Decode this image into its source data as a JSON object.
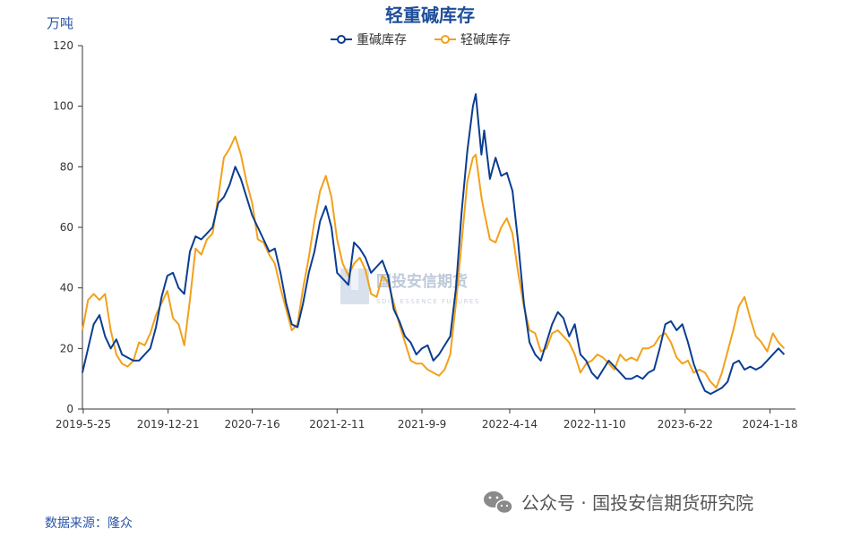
{
  "colors": {
    "heavy": "#0b3d91",
    "light": "#f2a11a",
    "axis": "#333333"
  },
  "chart_data": {
    "type": "line",
    "title": "轻重碱库存",
    "ylabel": "万吨",
    "ylim": [
      0,
      120
    ],
    "yticks": [
      0,
      20,
      40,
      60,
      80,
      100,
      120
    ],
    "xlim": [
      "2019-05-23",
      "2024-03-21"
    ],
    "xticks": [
      "2019-5-25",
      "2019-12-21",
      "2020-7-16",
      "2021-2-11",
      "2021-9-9",
      "2022-4-14",
      "2022-11-10",
      "2023-6-22",
      "2024-1-18"
    ],
    "grid": false,
    "legend_position": "top-center",
    "series": [
      {
        "name": "重碱库存",
        "color": "#0b3d91",
        "points": [
          [
            "2019-05-23",
            12
          ],
          [
            "2019-06-06",
            20
          ],
          [
            "2019-06-20",
            28
          ],
          [
            "2019-07-04",
            31
          ],
          [
            "2019-07-18",
            24
          ],
          [
            "2019-08-01",
            20
          ],
          [
            "2019-08-15",
            23
          ],
          [
            "2019-08-29",
            18
          ],
          [
            "2019-09-12",
            17
          ],
          [
            "2019-09-26",
            16
          ],
          [
            "2019-10-10",
            16
          ],
          [
            "2019-10-24",
            18
          ],
          [
            "2019-11-07",
            20
          ],
          [
            "2019-11-21",
            27
          ],
          [
            "2019-12-05",
            37
          ],
          [
            "2019-12-19",
            44
          ],
          [
            "2020-01-02",
            45
          ],
          [
            "2020-01-16",
            40
          ],
          [
            "2020-01-30",
            38
          ],
          [
            "2020-02-13",
            52
          ],
          [
            "2020-02-27",
            57
          ],
          [
            "2020-03-12",
            56
          ],
          [
            "2020-03-26",
            58
          ],
          [
            "2020-04-09",
            60
          ],
          [
            "2020-04-23",
            68
          ],
          [
            "2020-05-07",
            70
          ],
          [
            "2020-05-21",
            74
          ],
          [
            "2020-06-04",
            80
          ],
          [
            "2020-06-18",
            76
          ],
          [
            "2020-07-02",
            70
          ],
          [
            "2020-07-16",
            64
          ],
          [
            "2020-07-30",
            60
          ],
          [
            "2020-08-13",
            56
          ],
          [
            "2020-08-27",
            52
          ],
          [
            "2020-09-10",
            53
          ],
          [
            "2020-09-24",
            45
          ],
          [
            "2020-10-08",
            35
          ],
          [
            "2020-10-22",
            28
          ],
          [
            "2020-11-05",
            27
          ],
          [
            "2020-11-19",
            35
          ],
          [
            "2020-12-03",
            45
          ],
          [
            "2020-12-17",
            52
          ],
          [
            "2020-12-31",
            62
          ],
          [
            "2021-01-14",
            67
          ],
          [
            "2021-01-28",
            60
          ],
          [
            "2021-02-11",
            45
          ],
          [
            "2021-02-25",
            43
          ],
          [
            "2021-03-11",
            41
          ],
          [
            "2021-03-25",
            55
          ],
          [
            "2021-04-08",
            53
          ],
          [
            "2021-04-22",
            50
          ],
          [
            "2021-05-06",
            45
          ],
          [
            "2021-05-20",
            47
          ],
          [
            "2021-06-03",
            49
          ],
          [
            "2021-06-17",
            44
          ],
          [
            "2021-07-01",
            33
          ],
          [
            "2021-07-15",
            29
          ],
          [
            "2021-07-29",
            24
          ],
          [
            "2021-08-12",
            22
          ],
          [
            "2021-08-26",
            18
          ],
          [
            "2021-09-09",
            20
          ],
          [
            "2021-09-23",
            21
          ],
          [
            "2021-10-07",
            16
          ],
          [
            "2021-10-21",
            18
          ],
          [
            "2021-11-04",
            21
          ],
          [
            "2021-11-18",
            24
          ],
          [
            "2021-12-02",
            40
          ],
          [
            "2021-12-16",
            65
          ],
          [
            "2021-12-30",
            85
          ],
          [
            "2022-01-13",
            100
          ],
          [
            "2022-01-20",
            104
          ],
          [
            "2022-02-03",
            84
          ],
          [
            "2022-02-10",
            92
          ],
          [
            "2022-02-24",
            76
          ],
          [
            "2022-03-10",
            83
          ],
          [
            "2022-03-24",
            77
          ],
          [
            "2022-04-07",
            78
          ],
          [
            "2022-04-21",
            72
          ],
          [
            "2022-05-05",
            55
          ],
          [
            "2022-05-19",
            35
          ],
          [
            "2022-06-02",
            22
          ],
          [
            "2022-06-16",
            18
          ],
          [
            "2022-06-30",
            16
          ],
          [
            "2022-07-14",
            22
          ],
          [
            "2022-07-28",
            28
          ],
          [
            "2022-08-11",
            32
          ],
          [
            "2022-08-25",
            30
          ],
          [
            "2022-09-08",
            24
          ],
          [
            "2022-09-22",
            28
          ],
          [
            "2022-10-06",
            18
          ],
          [
            "2022-10-20",
            16
          ],
          [
            "2022-11-03",
            12
          ],
          [
            "2022-11-17",
            10
          ],
          [
            "2022-12-01",
            13
          ],
          [
            "2022-12-15",
            16
          ],
          [
            "2022-12-29",
            14
          ],
          [
            "2023-01-12",
            12
          ],
          [
            "2023-01-26",
            10
          ],
          [
            "2023-02-09",
            10
          ],
          [
            "2023-02-23",
            11
          ],
          [
            "2023-03-09",
            10
          ],
          [
            "2023-03-23",
            12
          ],
          [
            "2023-04-06",
            13
          ],
          [
            "2023-04-20",
            20
          ],
          [
            "2023-05-04",
            28
          ],
          [
            "2023-05-18",
            29
          ],
          [
            "2023-06-01",
            26
          ],
          [
            "2023-06-15",
            28
          ],
          [
            "2023-06-29",
            22
          ],
          [
            "2023-07-13",
            15
          ],
          [
            "2023-07-27",
            10
          ],
          [
            "2023-08-10",
            6
          ],
          [
            "2023-08-24",
            5
          ],
          [
            "2023-09-07",
            6
          ],
          [
            "2023-09-21",
            7
          ],
          [
            "2023-10-05",
            9
          ],
          [
            "2023-10-19",
            15
          ],
          [
            "2023-11-02",
            16
          ],
          [
            "2023-11-16",
            13
          ],
          [
            "2023-11-30",
            14
          ],
          [
            "2023-12-14",
            13
          ],
          [
            "2023-12-28",
            14
          ],
          [
            "2024-01-11",
            16
          ],
          [
            "2024-01-25",
            18
          ],
          [
            "2024-02-08",
            20
          ],
          [
            "2024-02-22",
            18
          ]
        ]
      },
      {
        "name": "轻碱库存",
        "color": "#f2a11a",
        "points": [
          [
            "2019-05-23",
            26
          ],
          [
            "2019-06-06",
            36
          ],
          [
            "2019-06-20",
            38
          ],
          [
            "2019-07-04",
            36
          ],
          [
            "2019-07-18",
            38
          ],
          [
            "2019-08-01",
            26
          ],
          [
            "2019-08-15",
            18
          ],
          [
            "2019-08-29",
            15
          ],
          [
            "2019-09-12",
            14
          ],
          [
            "2019-09-26",
            16
          ],
          [
            "2019-10-10",
            22
          ],
          [
            "2019-10-24",
            21
          ],
          [
            "2019-11-07",
            25
          ],
          [
            "2019-11-21",
            31
          ],
          [
            "2019-12-05",
            35
          ],
          [
            "2019-12-19",
            39
          ],
          [
            "2020-01-02",
            30
          ],
          [
            "2020-01-16",
            28
          ],
          [
            "2020-01-30",
            21
          ],
          [
            "2020-02-13",
            36
          ],
          [
            "2020-02-27",
            53
          ],
          [
            "2020-03-12",
            51
          ],
          [
            "2020-03-26",
            56
          ],
          [
            "2020-04-09",
            58
          ],
          [
            "2020-04-23",
            70
          ],
          [
            "2020-05-07",
            83
          ],
          [
            "2020-05-21",
            86
          ],
          [
            "2020-06-04",
            90
          ],
          [
            "2020-06-18",
            84
          ],
          [
            "2020-07-02",
            75
          ],
          [
            "2020-07-16",
            68
          ],
          [
            "2020-07-30",
            56
          ],
          [
            "2020-08-13",
            55
          ],
          [
            "2020-08-27",
            51
          ],
          [
            "2020-09-10",
            48
          ],
          [
            "2020-09-24",
            40
          ],
          [
            "2020-10-08",
            33
          ],
          [
            "2020-10-22",
            26
          ],
          [
            "2020-11-05",
            28
          ],
          [
            "2020-11-19",
            40
          ],
          [
            "2020-12-03",
            50
          ],
          [
            "2020-12-17",
            62
          ],
          [
            "2020-12-31",
            72
          ],
          [
            "2021-01-14",
            77
          ],
          [
            "2021-01-28",
            70
          ],
          [
            "2021-02-11",
            56
          ],
          [
            "2021-02-25",
            48
          ],
          [
            "2021-03-11",
            44
          ],
          [
            "2021-03-25",
            48
          ],
          [
            "2021-04-08",
            50
          ],
          [
            "2021-04-22",
            46
          ],
          [
            "2021-05-06",
            38
          ],
          [
            "2021-05-20",
            37
          ],
          [
            "2021-06-03",
            44
          ],
          [
            "2021-06-17",
            42
          ],
          [
            "2021-07-01",
            35
          ],
          [
            "2021-07-15",
            28
          ],
          [
            "2021-07-29",
            22
          ],
          [
            "2021-08-12",
            16
          ],
          [
            "2021-08-26",
            15
          ],
          [
            "2021-09-09",
            15
          ],
          [
            "2021-09-23",
            13
          ],
          [
            "2021-10-07",
            12
          ],
          [
            "2021-10-21",
            11
          ],
          [
            "2021-11-04",
            13
          ],
          [
            "2021-11-18",
            18
          ],
          [
            "2021-12-02",
            35
          ],
          [
            "2021-12-16",
            55
          ],
          [
            "2021-12-30",
            75
          ],
          [
            "2022-01-13",
            83
          ],
          [
            "2022-01-20",
            84
          ],
          [
            "2022-02-03",
            70
          ],
          [
            "2022-02-10",
            65
          ],
          [
            "2022-02-24",
            56
          ],
          [
            "2022-03-10",
            55
          ],
          [
            "2022-03-24",
            60
          ],
          [
            "2022-04-07",
            63
          ],
          [
            "2022-04-21",
            58
          ],
          [
            "2022-05-05",
            45
          ],
          [
            "2022-05-19",
            34
          ],
          [
            "2022-06-02",
            26
          ],
          [
            "2022-06-16",
            25
          ],
          [
            "2022-06-30",
            19
          ],
          [
            "2022-07-14",
            20
          ],
          [
            "2022-07-28",
            25
          ],
          [
            "2022-08-11",
            26
          ],
          [
            "2022-08-25",
            24
          ],
          [
            "2022-09-08",
            22
          ],
          [
            "2022-09-22",
            18
          ],
          [
            "2022-10-06",
            12
          ],
          [
            "2022-10-20",
            15
          ],
          [
            "2022-11-03",
            16
          ],
          [
            "2022-11-17",
            18
          ],
          [
            "2022-12-01",
            17
          ],
          [
            "2022-12-15",
            15
          ],
          [
            "2022-12-29",
            13
          ],
          [
            "2023-01-12",
            18
          ],
          [
            "2023-01-26",
            16
          ],
          [
            "2023-02-09",
            17
          ],
          [
            "2023-02-23",
            16
          ],
          [
            "2023-03-09",
            20
          ],
          [
            "2023-03-23",
            20
          ],
          [
            "2023-04-06",
            21
          ],
          [
            "2023-04-20",
            24
          ],
          [
            "2023-05-04",
            25
          ],
          [
            "2023-05-18",
            22
          ],
          [
            "2023-06-01",
            17
          ],
          [
            "2023-06-15",
            15
          ],
          [
            "2023-06-29",
            16
          ],
          [
            "2023-07-13",
            12
          ],
          [
            "2023-07-27",
            13
          ],
          [
            "2023-08-10",
            12
          ],
          [
            "2023-08-24",
            9
          ],
          [
            "2023-09-07",
            7
          ],
          [
            "2023-09-21",
            12
          ],
          [
            "2023-10-05",
            19
          ],
          [
            "2023-10-19",
            26
          ],
          [
            "2023-11-02",
            34
          ],
          [
            "2023-11-16",
            37
          ],
          [
            "2023-11-30",
            30
          ],
          [
            "2023-12-14",
            24
          ],
          [
            "2023-12-28",
            22
          ],
          [
            "2024-01-11",
            19
          ],
          [
            "2024-01-25",
            25
          ],
          [
            "2024-02-08",
            22
          ],
          [
            "2024-02-22",
            20
          ]
        ]
      }
    ]
  },
  "source_text": "数据来源：隆众",
  "watermark": {
    "logo_text": "国投安信期货",
    "logo_subtext": "SDIC ESSENCE FUTURES",
    "footer_text": "公众号 · 国投安信期货研究院",
    "icon": "wechat-icon"
  }
}
